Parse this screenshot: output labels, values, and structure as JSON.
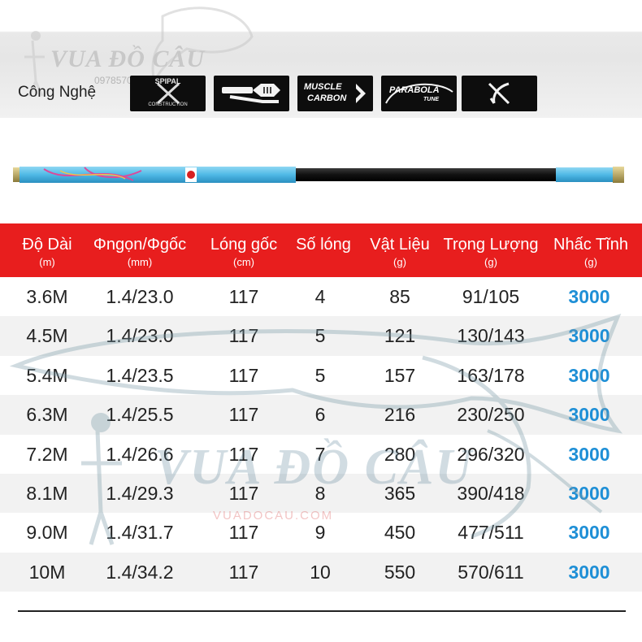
{
  "watermark": {
    "brand": "VUA ĐỒ CÂU",
    "phone": "0978570262",
    "site": "VUADOCAU.COM"
  },
  "technology": {
    "label": "Công Nghệ",
    "badges": [
      {
        "line1": "SPIPAL",
        "line2": "CONSTRUCTION",
        "icon": "spiral-x-icon"
      },
      {
        "icon": "rod-handle-icon"
      },
      {
        "line1": "MUSCLE",
        "line2": "CARBON",
        "icon": "muscle-carbon-icon"
      },
      {
        "line1": "PARABOLA",
        "line2": "TUNE",
        "icon": "parabola-tune-icon"
      },
      {
        "icon": "fish-hook-x-icon"
      }
    ]
  },
  "colors": {
    "header_red": "#e81e1e",
    "accent_blue": "#1e8fd6",
    "rod_blue": "#5cc1ea"
  },
  "table": {
    "headers": [
      {
        "title": "Độ Dài",
        "unit": "(m)"
      },
      {
        "title": "Φngọn/Φgốc",
        "unit": "(mm)"
      },
      {
        "title": "Lóng gốc",
        "unit": "(cm)"
      },
      {
        "title": "Số lóng",
        "unit": ""
      },
      {
        "title": "Vật Liệu",
        "unit": "(g)"
      },
      {
        "title": "Trọng Lượng",
        "unit": "(g)"
      },
      {
        "title": "Nhấc Tĩnh",
        "unit": "(g)"
      }
    ],
    "rows": [
      [
        "3.6M",
        "1.4/23.0",
        "117",
        "4",
        "85",
        "91/105",
        "3000"
      ],
      [
        "4.5M",
        "1.4/23.0",
        "117",
        "5",
        "121",
        "130/143",
        "3000"
      ],
      [
        "5.4M",
        "1.4/23.5",
        "117",
        "5",
        "157",
        "163/178",
        "3000"
      ],
      [
        "6.3M",
        "1.4/25.5",
        "117",
        "6",
        "216",
        "230/250",
        "3000"
      ],
      [
        "7.2M",
        "1.4/26.6",
        "117",
        "7",
        "280",
        "296/320",
        "3000"
      ],
      [
        "8.1M",
        "1.4/29.3",
        "117",
        "8",
        "365",
        "390/418",
        "3000"
      ],
      [
        "9.0M",
        "1.4/31.7",
        "117",
        "9",
        "450",
        "477/511",
        "3000"
      ],
      [
        "10M",
        "1.4/34.2",
        "117",
        "10",
        "550",
        "570/611",
        "3000"
      ]
    ]
  }
}
